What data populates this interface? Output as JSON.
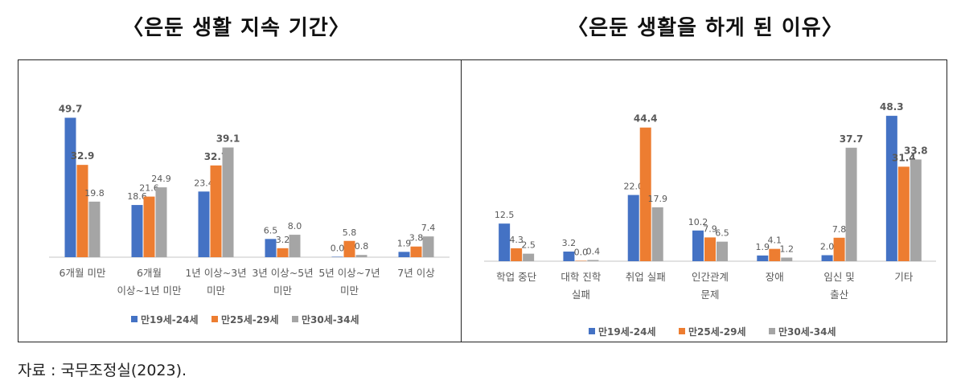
{
  "titles": {
    "left": "〈은둔 생활 지속 기간〉",
    "right": "〈은둔 생활을 하게 된 이유〉"
  },
  "source": "자료 : 국무조정실(2023).",
  "colors": {
    "series": [
      "#4472c4",
      "#ed7d31",
      "#a5a5a5"
    ],
    "axis": "#d9d9d9",
    "label": "#595959"
  },
  "chart_data": [
    {
      "type": "bar",
      "title": "〈은둔 생활 지속 기간〉",
      "legend_position": "bottom",
      "grid": false,
      "ylim": [
        0,
        55
      ],
      "categories": [
        [
          "6개월 미만"
        ],
        [
          "6개월",
          "이상~1년 미만"
        ],
        [
          "1년 이상~3년",
          "미만"
        ],
        [
          "3년 이상~5년",
          "미만"
        ],
        [
          "5년 이상~7년",
          "미만"
        ],
        [
          "7년 이상"
        ]
      ],
      "series": [
        {
          "name": "만19세-24세",
          "values": [
            49.7,
            18.6,
            23.4,
            6.5,
            0.0,
            1.9
          ]
        },
        {
          "name": "만25세-29세",
          "values": [
            32.9,
            21.6,
            32.7,
            3.2,
            5.8,
            3.8
          ]
        },
        {
          "name": "만30세-34세",
          "values": [
            19.8,
            24.9,
            39.1,
            8.0,
            0.8,
            7.4
          ]
        }
      ]
    },
    {
      "type": "bar",
      "title": "〈은둔 생활을 하게 된 이유〉",
      "legend_position": "bottom",
      "grid": false,
      "ylim": [
        0,
        55
      ],
      "categories": [
        [
          "학업 중단"
        ],
        [
          "대학 진학",
          "실패"
        ],
        [
          "취업 실패"
        ],
        [
          "인간관계",
          "문제"
        ],
        [
          "장애"
        ],
        [
          "임신 및",
          "출산"
        ],
        [
          "기타"
        ]
      ],
      "series": [
        {
          "name": "만19세-24세",
          "values": [
            12.5,
            3.2,
            22.0,
            10.2,
            1.9,
            2.0,
            48.3
          ]
        },
        {
          "name": "만25세-29세",
          "values": [
            4.3,
            0.0,
            44.4,
            7.9,
            4.1,
            7.8,
            31.4
          ]
        },
        {
          "name": "만30세-34세",
          "values": [
            2.5,
            0.4,
            17.9,
            6.5,
            1.2,
            37.7,
            33.8
          ]
        }
      ]
    }
  ]
}
